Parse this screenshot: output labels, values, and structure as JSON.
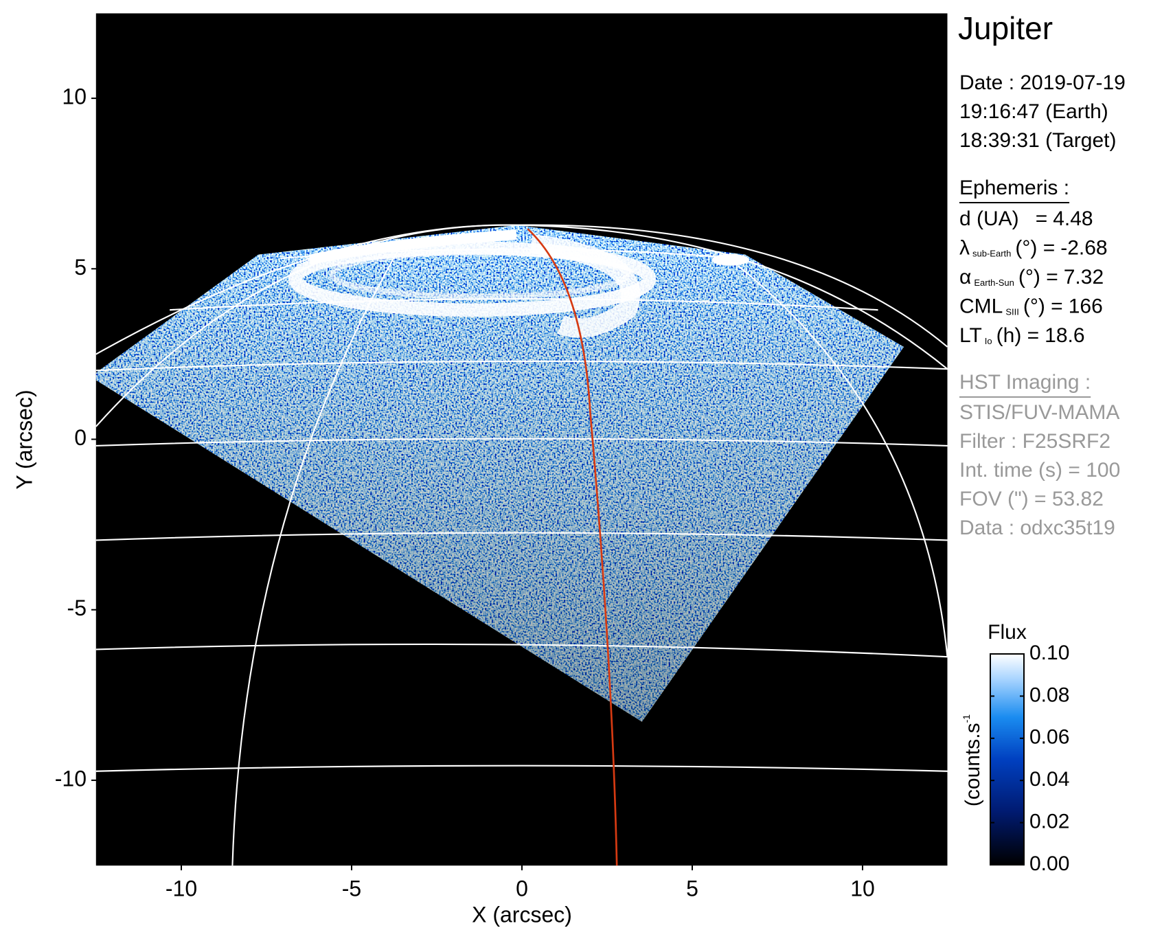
{
  "chart_data": {
    "type": "image",
    "title": "Jupiter",
    "x_label": "X (arcsec)",
    "y_label": "Y (arcsec)",
    "xlim": [
      -12.5,
      12.5
    ],
    "ylim": [
      -12.5,
      12.5
    ],
    "xticks": [
      -10,
      -5,
      0,
      5,
      10
    ],
    "yticks": [
      -10,
      -5,
      0,
      5,
      10
    ],
    "info": {
      "date_lines": [
        "Date : 2019-07-19",
        "19:16:47 (Earth)",
        "18:39:31 (Target)"
      ],
      "ephemeris": {
        "title": "Ephemeris :",
        "rows": [
          {
            "name": "d (UA)",
            "suffix": "=",
            "value": 4.48
          },
          {
            "name": "λ",
            "subscript": "sub-Earth",
            "suffix": "(°) =",
            "value": -2.68
          },
          {
            "name": "α",
            "subscript": "Earth-Sun",
            "suffix": "(°) =",
            "value": 7.32
          },
          {
            "name": "CML",
            "subscript": "SIII",
            "suffix": "(°) =",
            "value": 166
          },
          {
            "name": "LT",
            "subscript": "Io",
            "suffix": "(h) =",
            "value": 18.6
          }
        ]
      },
      "instrument": {
        "title": "HST Imaging :",
        "lines": [
          "STIS/FUV-MAMA",
          "Filter : F25SRF2",
          "Int. time (s) = 100",
          "FOV (\") = 53.82",
          "Data : odxc35t19"
        ]
      }
    },
    "colorbar": {
      "title": "Flux",
      "label": "(counts.s",
      "label_superscript": "-1",
      "lim": [
        0,
        0.1
      ],
      "ticks": [
        {
          "value": 0,
          "label": "0.00"
        },
        0.02,
        0.04,
        0.06,
        0.08,
        {
          "value": 0.1,
          "label": "0.10"
        }
      ]
    }
  }
}
